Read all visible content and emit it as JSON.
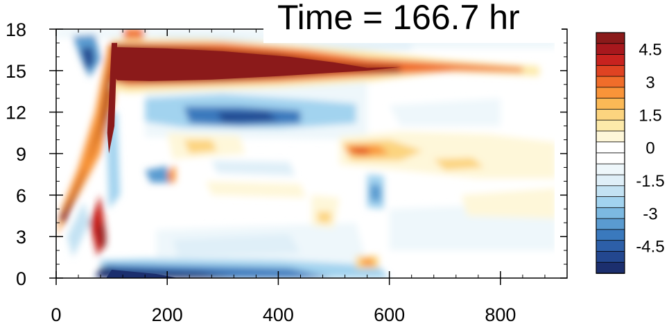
{
  "chart_data": {
    "type": "heatmap",
    "title": "Time = 166.7 hr",
    "xlabel": "",
    "ylabel": "",
    "xlim": [
      0,
      920
    ],
    "ylim": [
      0,
      18
    ],
    "x_ticks": [
      "0",
      "200",
      "400",
      "600",
      "800"
    ],
    "y_ticks": [
      "0",
      "3",
      "6",
      "9",
      "12",
      "15",
      "18"
    ],
    "x_range_of_data": [
      0,
      900
    ],
    "colorbar": {
      "levels": [
        -5.5,
        -5,
        -4.5,
        -4,
        -3.5,
        -3,
        -2.5,
        -2,
        -1.5,
        -1,
        -0.5,
        0,
        0.5,
        1,
        1.5,
        2,
        2.5,
        3,
        3.5,
        4,
        4.5,
        5,
        5.5
      ],
      "tick_labels": [
        "4.5",
        "3",
        "1.5",
        "0",
        "-1.5",
        "-3",
        "-4.5"
      ],
      "colors": [
        "#1c2f6e",
        "#23478f",
        "#2d5fa8",
        "#3a79bd",
        "#5a9bd0",
        "#7cb9e1",
        "#a2d3ef",
        "#c3e2f3",
        "#dfeff8",
        "#eef7fb",
        "#ffffff",
        "#ffffff",
        "#fef7d9",
        "#fdeaaa",
        "#fcd47f",
        "#fbb956",
        "#f99439",
        "#f06d2a",
        "#df4322",
        "#c8231f",
        "#a8181d",
        "#8b1a1a"
      ]
    },
    "features": [
      {
        "name": "upper warm band",
        "x": [
          100,
          850
        ],
        "y": [
          14,
          16.5
        ],
        "value": 5.5
      },
      {
        "name": "near-surface cold band",
        "x": [
          80,
          560
        ],
        "y": [
          0,
          1
        ],
        "value": -5
      },
      {
        "name": "cold band",
        "x": [
          150,
          520
        ],
        "y": [
          10.5,
          13
        ],
        "value": -3
      },
      {
        "name": "mid warm anomaly",
        "x": [
          520,
          900
        ],
        "y": [
          7.5,
          10.5
        ],
        "value": 2
      },
      {
        "name": "early tilted warm plume",
        "x": [
          0,
          110
        ],
        "y": [
          2,
          17
        ],
        "value": 5
      }
    ]
  }
}
